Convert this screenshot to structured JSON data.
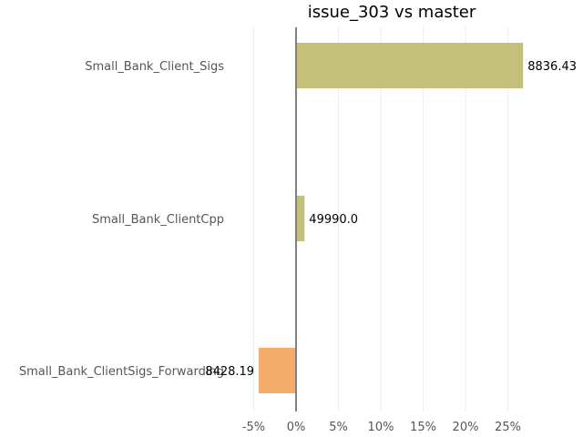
{
  "chart_data": {
    "type": "bar",
    "orientation": "horizontal",
    "title": "issue_303 vs master",
    "xlabel": "",
    "ylabel": "",
    "xlim": [
      -5,
      28
    ],
    "x_ticks": [
      -5,
      0,
      5,
      10,
      15,
      20,
      25
    ],
    "tick_labels": [
      "-5%",
      "0%",
      "5%",
      "10%",
      "15%",
      "20%",
      "25%"
    ],
    "categories": [
      "Small_Bank_Client_Sigs",
      "Small_Bank_ClientCpp",
      "Small_Bank_ClientSigs_Forwarding"
    ],
    "values": [
      26.8,
      1.0,
      -4.4
    ],
    "data_labels": [
      "8836.43",
      "49990.0",
      "8428.19"
    ],
    "colors": [
      "#c4bf79",
      "#c4bf79",
      "#f5ac6b"
    ],
    "grid": true,
    "legend": "none"
  }
}
